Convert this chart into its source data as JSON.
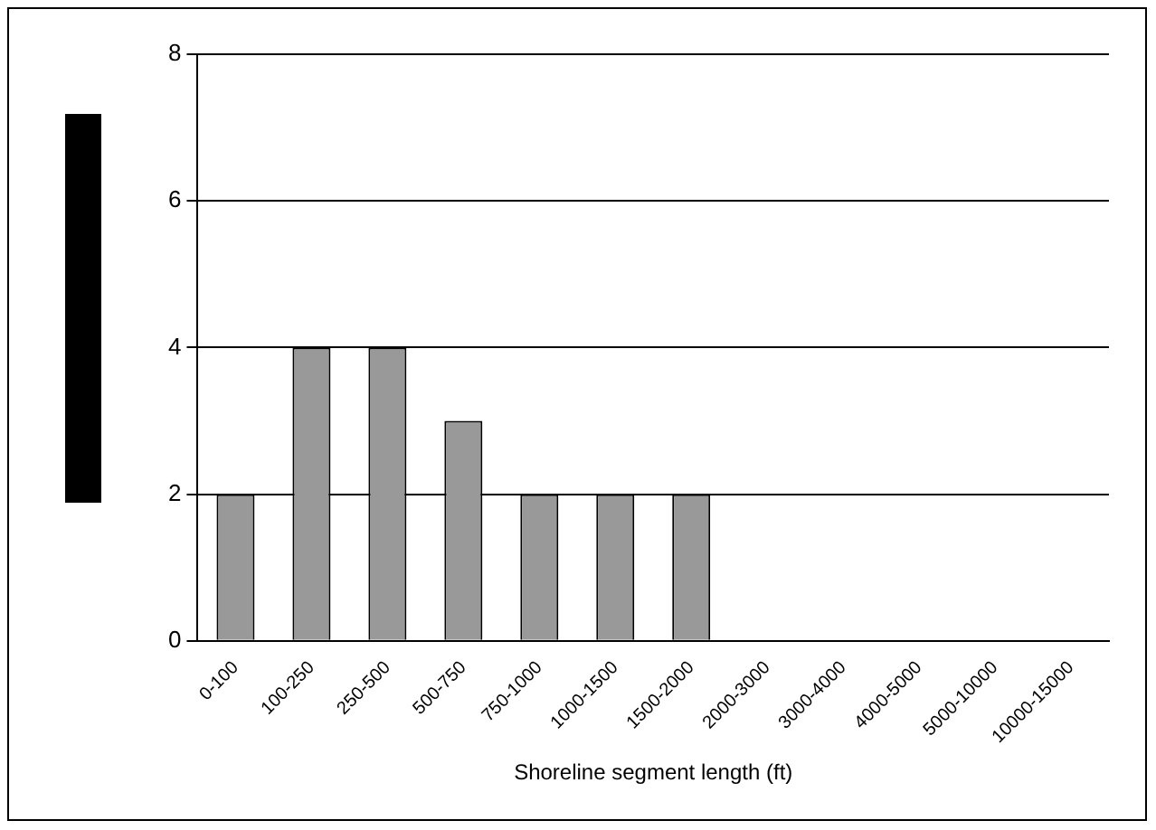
{
  "chart_data": {
    "type": "bar",
    "xlabel": "Shoreline segment length (ft)",
    "categories": [
      "0-100",
      "100-250",
      "250-500",
      "500-750",
      "750-1000",
      "1000-1500",
      "1500-2000",
      "2000-3000",
      "3000-4000",
      "4000-5000",
      "5000-10000",
      "10000-15000"
    ],
    "values": [
      2,
      4,
      4,
      3,
      2,
      2,
      2,
      0,
      0,
      0,
      0,
      0
    ],
    "color": "#999999",
    "ylim": [
      0,
      8
    ],
    "yticks": [
      0,
      2,
      4,
      6,
      8
    ],
    "grid": "y",
    "legend": false
  }
}
